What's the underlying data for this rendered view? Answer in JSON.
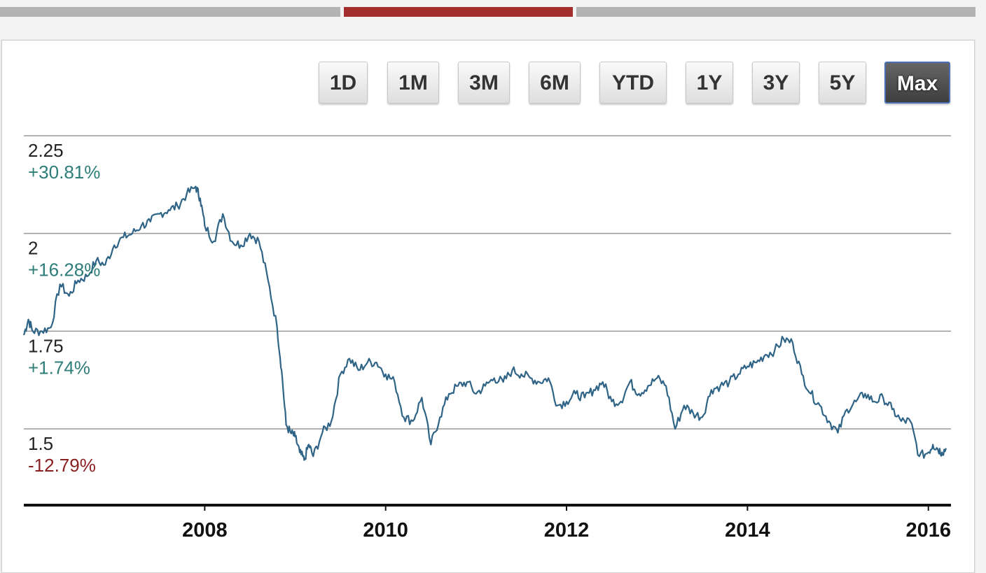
{
  "colors": {
    "tab_inactive": "#b3b3b3",
    "tab_active": "#a32e2e",
    "line": "#2f6486",
    "positive": "#2d7d78",
    "negative": "#8a2020",
    "grid": "#9a9a9a",
    "axis": "#111111"
  },
  "range_buttons": [
    {
      "label": "1D",
      "active": false
    },
    {
      "label": "1M",
      "active": false
    },
    {
      "label": "3M",
      "active": false
    },
    {
      "label": "6M",
      "active": false
    },
    {
      "label": "YTD",
      "active": false
    },
    {
      "label": "1Y",
      "active": false
    },
    {
      "label": "3Y",
      "active": false
    },
    {
      "label": "5Y",
      "active": false
    },
    {
      "label": "Max",
      "active": true
    }
  ],
  "chart_data": {
    "type": "line",
    "title": "",
    "xlabel": "",
    "ylabel": "",
    "xlim": [
      2006.0,
      2016.25
    ],
    "ylim": [
      1.305,
      2.275
    ],
    "grid": true,
    "y_ticks": [
      {
        "value": 2.25,
        "label": "2.25",
        "change": "+30.81%"
      },
      {
        "value": 2.0,
        "label": "2",
        "change": "+16.28%"
      },
      {
        "value": 1.75,
        "label": "1.75",
        "change": "+1.74%"
      },
      {
        "value": 1.5,
        "label": "1.5",
        "change": "-12.79%"
      }
    ],
    "x_ticks": [
      {
        "value": 2008,
        "label": "2008"
      },
      {
        "value": 2010,
        "label": "2010"
      },
      {
        "value": 2012,
        "label": "2012"
      },
      {
        "value": 2014,
        "label": "2014"
      },
      {
        "value": 2016,
        "label": "2016"
      }
    ],
    "series": [
      {
        "x": [
          2006.0,
          2006.05,
          2006.1,
          2006.2,
          2006.3,
          2006.4,
          2006.5,
          2006.6,
          2006.7,
          2006.8,
          2006.9,
          2007.0,
          2007.1,
          2007.2,
          2007.3,
          2007.4,
          2007.5,
          2007.6,
          2007.7,
          2007.8,
          2007.9,
          2007.95,
          2008.0,
          2008.1,
          2008.2,
          2008.3,
          2008.4,
          2008.5,
          2008.6,
          2008.7,
          2008.8,
          2008.85,
          2008.9,
          2008.95,
          2009.0,
          2009.05,
          2009.1,
          2009.15,
          2009.2,
          2009.3,
          2009.4,
          2009.5,
          2009.6,
          2009.7,
          2009.8,
          2009.9,
          2010.0,
          2010.1,
          2010.2,
          2010.3,
          2010.4,
          2010.5,
          2010.6,
          2010.7,
          2010.8,
          2010.9,
          2011.0,
          2011.1,
          2011.2,
          2011.3,
          2011.4,
          2011.5,
          2011.6,
          2011.7,
          2011.8,
          2011.9,
          2012.0,
          2012.1,
          2012.2,
          2012.3,
          2012.4,
          2012.5,
          2012.6,
          2012.7,
          2012.8,
          2012.9,
          2013.0,
          2013.1,
          2013.2,
          2013.3,
          2013.4,
          2013.5,
          2013.6,
          2013.7,
          2013.8,
          2013.9,
          2014.0,
          2014.1,
          2014.2,
          2014.3,
          2014.4,
          2014.5,
          2014.6,
          2014.7,
          2014.8,
          2014.9,
          2015.0,
          2015.1,
          2015.2,
          2015.3,
          2015.4,
          2015.5,
          2015.6,
          2015.7,
          2015.8,
          2015.9,
          2016.0,
          2016.05,
          2016.1,
          2016.15,
          2016.2
        ],
        "values": [
          1.74,
          1.78,
          1.75,
          1.75,
          1.76,
          1.87,
          1.84,
          1.88,
          1.89,
          1.93,
          1.92,
          1.97,
          1.99,
          2.0,
          2.02,
          2.03,
          2.05,
          2.06,
          2.07,
          2.1,
          2.12,
          2.09,
          2.02,
          1.98,
          2.05,
          1.98,
          1.97,
          2.0,
          1.98,
          1.88,
          1.76,
          1.65,
          1.51,
          1.49,
          1.48,
          1.44,
          1.42,
          1.46,
          1.43,
          1.49,
          1.52,
          1.64,
          1.68,
          1.65,
          1.67,
          1.67,
          1.64,
          1.62,
          1.53,
          1.52,
          1.58,
          1.46,
          1.53,
          1.59,
          1.61,
          1.62,
          1.59,
          1.61,
          1.63,
          1.62,
          1.65,
          1.64,
          1.63,
          1.62,
          1.63,
          1.56,
          1.57,
          1.59,
          1.58,
          1.6,
          1.62,
          1.57,
          1.57,
          1.62,
          1.59,
          1.61,
          1.63,
          1.61,
          1.5,
          1.56,
          1.54,
          1.53,
          1.6,
          1.61,
          1.62,
          1.64,
          1.66,
          1.67,
          1.69,
          1.7,
          1.73,
          1.72,
          1.64,
          1.59,
          1.56,
          1.52,
          1.49,
          1.55,
          1.57,
          1.59,
          1.57,
          1.58,
          1.55,
          1.52,
          1.52,
          1.43,
          1.44,
          1.46,
          1.45,
          1.44,
          1.45
        ]
      }
    ]
  }
}
